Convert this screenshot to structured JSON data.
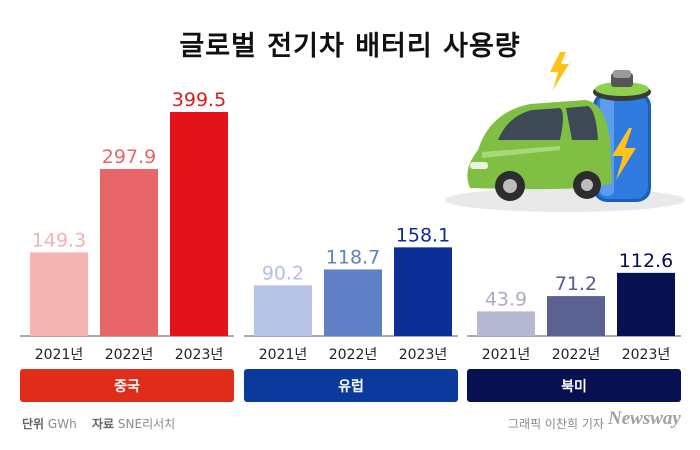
{
  "header": {
    "title": "글로벌 전기차 배터리 사용량"
  },
  "footer": {
    "unit_label": "단위",
    "unit_value": "GWh",
    "source_label": "자료",
    "source_value": "SNE리서치",
    "credit": "그래픽 이찬희 기자",
    "logo": "Newsway"
  },
  "chart_data": {
    "type": "bar",
    "title": "글로벌 전기차 배터리 사용량",
    "unit": "GWh",
    "categories": [
      "2021년",
      "2022년",
      "2023년"
    ],
    "groups": [
      {
        "name": "중국",
        "values": [
          149.3,
          297.9,
          399.5
        ],
        "colors": [
          "#f4b6b3",
          "#e8666a",
          "#e4131b"
        ],
        "label_colors": [
          "#f3b2b0",
          "#e8666a",
          "#dd1a1f"
        ],
        "banner_color": "#e02d1a"
      },
      {
        "name": "유럽",
        "values": [
          90.2,
          118.7,
          158.1
        ],
        "colors": [
          "#b6c3e4",
          "#5f7fc6",
          "#0b2f95"
        ],
        "label_colors": [
          "#b3c0e2",
          "#5f7fc6",
          "#0b2f95"
        ],
        "banner_color": "#0a3a9c"
      },
      {
        "name": "북미",
        "values": [
          43.9,
          71.2,
          112.6
        ],
        "colors": [
          "#b6b9d2",
          "#5b6292",
          "#071152"
        ],
        "label_colors": [
          "#a9adc8",
          "#555c8a",
          "#071152"
        ],
        "banner_color": "#071152"
      }
    ],
    "ylim": [
      0,
      399.5
    ]
  }
}
